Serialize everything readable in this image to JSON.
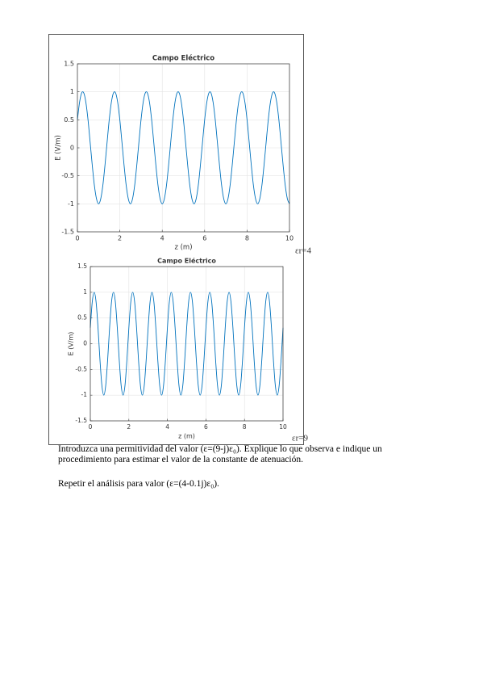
{
  "chart_data": [
    {
      "type": "line",
      "title": "Campo Eléctrico",
      "xlabel": "z (m)",
      "ylabel": "E (V/m)",
      "annotation": "εr=4",
      "color": "#0072bd",
      "grid": true,
      "xlim": [
        0,
        10
      ],
      "xticks": [
        0,
        2,
        4,
        6,
        8,
        10
      ],
      "ylim": [
        -1.5,
        1.5
      ],
      "yticks": [
        -1.5,
        -1,
        -0.5,
        0,
        0.5,
        1,
        1.5
      ],
      "x": [
        0,
        0.1,
        0.2,
        0.3,
        0.4,
        0.5,
        0.6,
        0.7,
        0.8,
        0.9,
        1,
        1.1,
        1.2,
        1.3,
        1.4,
        1.5,
        1.6,
        1.7,
        1.8,
        1.9,
        2,
        2.1,
        2.2,
        2.3,
        2.4,
        2.5,
        2.6,
        2.7,
        2.8,
        2.9,
        3,
        3.1,
        3.2,
        3.3,
        3.4,
        3.5,
        3.6,
        3.7,
        3.8,
        3.9,
        4,
        4.1,
        4.2,
        4.3,
        4.4,
        4.5,
        4.6,
        4.7,
        4.8,
        4.9,
        5,
        5.1,
        5.2,
        5.3,
        5.4,
        5.5,
        5.6,
        5.7,
        5.8,
        5.9,
        6,
        6.1,
        6.2,
        6.3,
        6.4,
        6.5,
        6.6,
        6.7,
        6.8,
        6.9,
        7,
        7.1,
        7.2,
        7.3,
        7.4,
        7.5,
        7.6,
        7.7,
        7.8,
        7.9,
        8,
        8.1,
        8.2,
        8.3,
        8.4,
        8.5,
        8.6,
        8.7,
        8.8,
        8.9,
        9,
        9.1,
        9.2,
        9.3,
        9.4,
        9.5,
        9.6,
        9.7,
        9.8,
        9.9,
        10
      ],
      "values": [
        0.5,
        0.81,
        0.98,
        0.98,
        0.81,
        0.5,
        0.1,
        -0.31,
        -0.67,
        -0.91,
        -1,
        -0.91,
        -0.67,
        -0.31,
        0.1,
        0.5,
        0.81,
        0.98,
        0.98,
        0.81,
        0.5,
        0.1,
        -0.31,
        -0.67,
        -0.91,
        -1,
        -0.91,
        -0.67,
        -0.31,
        0.1,
        0.5,
        0.81,
        0.98,
        0.98,
        0.81,
        0.5,
        0.1,
        -0.31,
        -0.67,
        -0.91,
        -1,
        -0.91,
        -0.67,
        -0.31,
        0.1,
        0.5,
        0.81,
        0.98,
        0.98,
        0.81,
        0.5,
        0.1,
        -0.31,
        -0.67,
        -0.91,
        -1,
        -0.91,
        -0.67,
        -0.31,
        0.1,
        0.5,
        0.81,
        0.98,
        0.98,
        0.81,
        0.5,
        0.1,
        -0.31,
        -0.67,
        -0.91,
        -1,
        -0.91,
        -0.67,
        -0.31,
        0.1,
        0.5,
        0.81,
        0.98,
        0.98,
        0.81,
        0.5,
        0.1,
        -0.31,
        -0.67,
        -0.91,
        -1,
        -0.91,
        -0.67,
        -0.31,
        0.1,
        0.5,
        0.81,
        0.98,
        0.98,
        0.81,
        0.5,
        0.1,
        -0.31,
        -0.67,
        -0.91,
        -1
      ]
    },
    {
      "type": "line",
      "title": "Campo Eléctrico",
      "xlabel": "z (m)",
      "ylabel": "E (V/m)",
      "annotation": "εr=9",
      "color": "#0072bd",
      "grid": true,
      "xlim": [
        0,
        10
      ],
      "xticks": [
        0,
        2,
        4,
        6,
        8,
        10
      ],
      "ylim": [
        -1.5,
        1.5
      ],
      "yticks": [
        -1.5,
        -1,
        -0.5,
        0,
        0.5,
        1,
        1.5
      ],
      "x": [
        0,
        0.1,
        0.2,
        0.3,
        0.4,
        0.5,
        0.6,
        0.7,
        0.8,
        0.9,
        1,
        1.1,
        1.2,
        1.3,
        1.4,
        1.5,
        1.6,
        1.7,
        1.8,
        1.9,
        2,
        2.1,
        2.2,
        2.3,
        2.4,
        2.5,
        2.6,
        2.7,
        2.8,
        2.9,
        3,
        3.1,
        3.2,
        3.3,
        3.4,
        3.5,
        3.6,
        3.7,
        3.8,
        3.9,
        4,
        4.1,
        4.2,
        4.3,
        4.4,
        4.5,
        4.6,
        4.7,
        4.8,
        4.9,
        5,
        5.1,
        5.2,
        5.3,
        5.4,
        5.5,
        5.6,
        5.7,
        5.8,
        5.9,
        6,
        6.1,
        6.2,
        6.3,
        6.4,
        6.5,
        6.6,
        6.7,
        6.8,
        6.9,
        7,
        7.1,
        7.2,
        7.3,
        7.4,
        7.5,
        7.6,
        7.7,
        7.8,
        7.9,
        8,
        8.1,
        8.2,
        8.3,
        8.4,
        8.5,
        8.6,
        8.7,
        8.8,
        8.9,
        9,
        9.1,
        9.2,
        9.3,
        9.4,
        9.5,
        9.6,
        9.7,
        9.8,
        9.9,
        10
      ],
      "values": [
        0.31,
        0.81,
        1,
        0.81,
        0.31,
        -0.31,
        -0.81,
        -1,
        -0.81,
        -0.31,
        0.31,
        0.81,
        1,
        0.81,
        0.31,
        -0.31,
        -0.81,
        -1,
        -0.81,
        -0.31,
        0.31,
        0.81,
        1,
        0.81,
        0.31,
        -0.31,
        -0.81,
        -1,
        -0.81,
        -0.31,
        0.31,
        0.81,
        1,
        0.81,
        0.31,
        -0.31,
        -0.81,
        -1,
        -0.81,
        -0.31,
        0.31,
        0.81,
        1,
        0.81,
        0.31,
        -0.31,
        -0.81,
        -1,
        -0.81,
        -0.31,
        0.31,
        0.81,
        1,
        0.81,
        0.31,
        -0.31,
        -0.81,
        -1,
        -0.81,
        -0.31,
        0.31,
        0.81,
        1,
        0.81,
        0.31,
        -0.31,
        -0.81,
        -1,
        -0.81,
        -0.31,
        0.31,
        0.81,
        1,
        0.81,
        0.31,
        -0.31,
        -0.81,
        -1,
        -0.81,
        -0.31,
        0.31,
        0.81,
        1,
        0.81,
        0.31,
        -0.31,
        -0.81,
        -1,
        -0.81,
        -0.31,
        0.31,
        0.81,
        1,
        0.81,
        0.31,
        -0.31,
        -0.81,
        -1,
        -0.81,
        -0.31,
        0.31
      ]
    }
  ],
  "document": {
    "paragraphs": [
      "Introduzca una permitividad del valor (ε=(9-j)ε₀). Explique lo que observa e indique un procedimiento para estimar el valor de la constante de atenuación.",
      "Repetir el análisis para valor (ε=(4-0.1j)ε₀)."
    ]
  }
}
